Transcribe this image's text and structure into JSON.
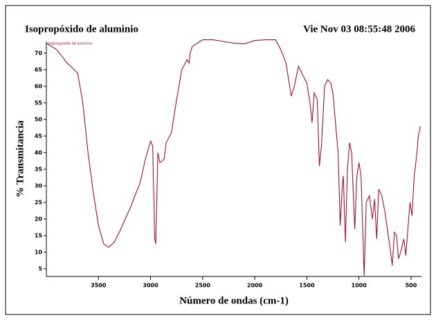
{
  "chart_data": {
    "type": "line",
    "title": "Isopropóxido de aluminio",
    "subtitle": "Vie Nov 03 08:55:48 2006",
    "x_label": "Número de ondas (cm-1)",
    "y_label": "% Transmitancia",
    "xlim": [
      4000,
      400
    ],
    "ylim": [
      2.7,
      73.5
    ],
    "xticks": [
      3500,
      3000,
      2500,
      2000,
      1500,
      1000,
      500
    ],
    "yticks": [
      5,
      10,
      15,
      20,
      25,
      30,
      35,
      40,
      45,
      50,
      55,
      60,
      65,
      70
    ],
    "x": [
      4000,
      3900,
      3800,
      3700,
      3650,
      3600,
      3550,
      3500,
      3450,
      3400,
      3350,
      3300,
      3200,
      3100,
      3050,
      3000,
      2980,
      2960,
      2950,
      2930,
      2910,
      2870,
      2850,
      2800,
      2750,
      2700,
      2650,
      2630,
      2620,
      2600,
      2500,
      2400,
      2300,
      2200,
      2100,
      2000,
      1900,
      1800,
      1750,
      1700,
      1650,
      1620,
      1580,
      1550,
      1500,
      1470,
      1450,
      1430,
      1400,
      1380,
      1360,
      1330,
      1300,
      1270,
      1250,
      1200,
      1180,
      1160,
      1150,
      1130,
      1110,
      1090,
      1070,
      1040,
      1020,
      1000,
      980,
      950,
      930,
      900,
      870,
      850,
      830,
      810,
      780,
      750,
      700,
      680,
      660,
      640,
      620,
      600,
      570,
      550,
      530,
      510,
      490,
      470,
      450,
      430,
      410
    ],
    "series": [
      {
        "name": "Isopropóxido de aluminio",
        "color": "#a0102c",
        "values": [
          73,
          71,
          67,
          64,
          55,
          40,
          28,
          18,
          12.5,
          11.5,
          13,
          16,
          23,
          31,
          38,
          43.5,
          42,
          14,
          12.5,
          40,
          37,
          38,
          43,
          46,
          56,
          65,
          68,
          67,
          70,
          72,
          74,
          74,
          73.5,
          73,
          72.8,
          73.8,
          74,
          74,
          71,
          67,
          57,
          60,
          66,
          64,
          61,
          55,
          49,
          58,
          56,
          36,
          42,
          60,
          62,
          61,
          58,
          40,
          18,
          30,
          33,
          13,
          35,
          43,
          40,
          17,
          33,
          37,
          33,
          3,
          25,
          27,
          20,
          26,
          14,
          29,
          27,
          22,
          11,
          6,
          16,
          15,
          8,
          10,
          14,
          9,
          17,
          25,
          21,
          33,
          38,
          45,
          48
        ]
      }
    ]
  }
}
